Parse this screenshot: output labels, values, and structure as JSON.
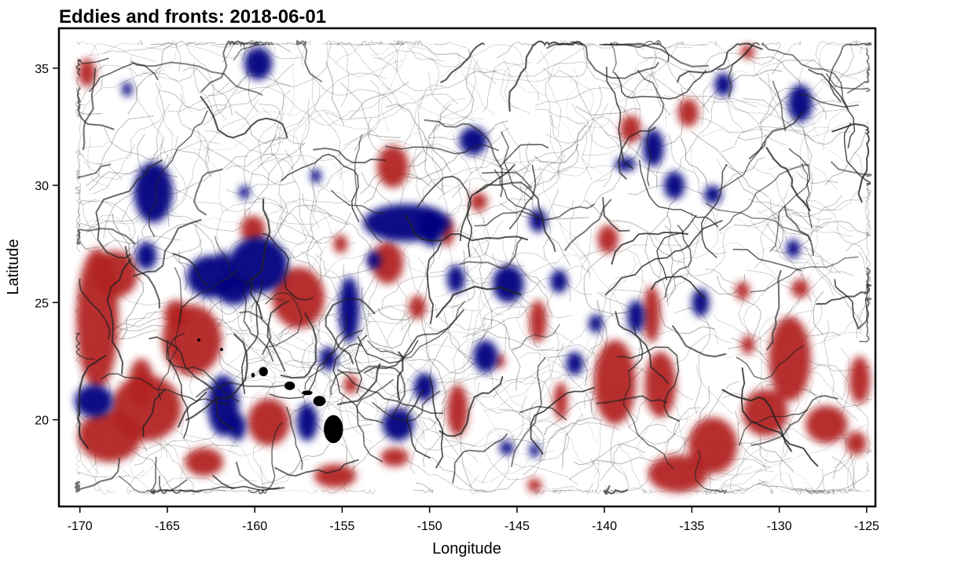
{
  "title": "Eddies and fronts: 2018-06-01",
  "xlabel": "Longitude",
  "ylabel": "Latitude",
  "x_ticks": [
    "-170",
    "-165",
    "-160",
    "-155",
    "-150",
    "-145",
    "-140",
    "-135",
    "-130",
    "-125"
  ],
  "y_ticks": [
    "20",
    "25",
    "30",
    "35"
  ],
  "colors": {
    "cyclonic": "#00007f",
    "anticyclonic": "#b22222",
    "fronts": "#222222",
    "land": "#000000",
    "frame": "#000000"
  },
  "chart_data": {
    "type": "map",
    "title": "Eddies and fronts: 2018-06-01",
    "xlabel": "Longitude",
    "ylabel": "Latitude",
    "xlim": [
      -171.2,
      -124.5
    ],
    "ylim": [
      16.3,
      36.7
    ],
    "data_extent": {
      "lon": [
        -170,
        -125
      ],
      "lat": [
        17,
        36
      ]
    },
    "x_ticks": [
      -170,
      -165,
      -160,
      -155,
      -150,
      -145,
      -140,
      -135,
      -130,
      -125
    ],
    "y_ticks": [
      20,
      25,
      30,
      35
    ],
    "blue_eddies": [
      [
        -169.2,
        20.8,
        1.1,
        0.7
      ],
      [
        -165.8,
        29.7,
        1.1,
        1.3
      ],
      [
        -166.2,
        27.0,
        0.6,
        0.6
      ],
      [
        -162.5,
        26.1,
        1.4,
        0.9
      ],
      [
        -159.8,
        26.6,
        1.7,
        1.2
      ],
      [
        -161.2,
        25.5,
        1.0,
        0.6
      ],
      [
        -161.8,
        20.6,
        0.9,
        1.3
      ],
      [
        -161.0,
        19.7,
        0.5,
        0.6
      ],
      [
        -157.0,
        19.9,
        0.6,
        0.8
      ],
      [
        -154.6,
        24.7,
        0.6,
        1.4
      ],
      [
        -151.3,
        28.4,
        2.5,
        0.8
      ],
      [
        -149.9,
        28.2,
        0.7,
        0.8
      ],
      [
        -147.5,
        31.9,
        0.8,
        0.6
      ],
      [
        -159.8,
        35.2,
        0.8,
        0.7
      ],
      [
        -148.5,
        26.0,
        0.5,
        0.6
      ],
      [
        -145.5,
        25.8,
        0.9,
        0.8
      ],
      [
        -146.8,
        22.7,
        0.7,
        0.7
      ],
      [
        -155.8,
        22.6,
        0.5,
        0.5
      ],
      [
        -150.3,
        21.4,
        0.6,
        0.6
      ],
      [
        -151.8,
        19.8,
        0.9,
        0.7
      ],
      [
        -142.6,
        25.9,
        0.5,
        0.5
      ],
      [
        -143.8,
        28.5,
        0.5,
        0.5
      ],
      [
        -141.7,
        22.4,
        0.5,
        0.5
      ],
      [
        -140.5,
        24.1,
        0.4,
        0.4
      ],
      [
        -138.2,
        24.4,
        0.5,
        0.7
      ],
      [
        -134.5,
        25.0,
        0.5,
        0.6
      ],
      [
        -137.2,
        31.6,
        0.6,
        0.8
      ],
      [
        -136.0,
        30.0,
        0.6,
        0.6
      ],
      [
        -133.2,
        34.3,
        0.5,
        0.5
      ],
      [
        -128.8,
        33.5,
        0.7,
        0.8
      ],
      [
        -129.2,
        27.3,
        0.4,
        0.4
      ],
      [
        -138.8,
        30.9,
        0.6,
        0.3
      ],
      [
        -153.2,
        26.8,
        0.4,
        0.4
      ],
      [
        -133.8,
        29.6,
        0.5,
        0.4
      ],
      [
        -160.6,
        29.7,
        0.3,
        0.3
      ],
      [
        -156.5,
        30.4,
        0.3,
        0.3
      ],
      [
        -167.3,
        34.1,
        0.3,
        0.3
      ],
      [
        -161.8,
        26.9,
        0.3,
        0.3
      ],
      [
        -145.6,
        18.8,
        0.4,
        0.3
      ],
      [
        -144.0,
        18.7,
        0.3,
        0.3
      ]
    ],
    "red_eddies": [
      [
        -169.0,
        24.3,
        1.2,
        3.0
      ],
      [
        -168.0,
        26.2,
        1.3,
        1.0
      ],
      [
        -163.6,
        23.4,
        1.7,
        1.5
      ],
      [
        -164.5,
        24.5,
        0.7,
        0.6
      ],
      [
        -166.2,
        20.5,
        2.0,
        1.4
      ],
      [
        -168.3,
        19.3,
        1.8,
        1.1
      ],
      [
        -166.5,
        21.6,
        0.7,
        1.0
      ],
      [
        -162.9,
        18.2,
        1.1,
        0.6
      ],
      [
        -159.2,
        19.9,
        1.2,
        1.0
      ],
      [
        -157.5,
        25.2,
        1.5,
        1.3
      ],
      [
        -160.1,
        28.1,
        0.7,
        0.6
      ],
      [
        -152.4,
        26.7,
        0.9,
        0.9
      ],
      [
        -152.1,
        30.8,
        0.9,
        0.9
      ],
      [
        -149.0,
        28.0,
        0.4,
        0.6
      ],
      [
        -155.4,
        17.6,
        1.2,
        0.5
      ],
      [
        -152.0,
        18.4,
        0.8,
        0.4
      ],
      [
        -150.7,
        24.8,
        0.5,
        0.5
      ],
      [
        -148.4,
        20.4,
        0.6,
        1.1
      ],
      [
        -147.2,
        29.3,
        0.5,
        0.4
      ],
      [
        -139.8,
        27.7,
        0.6,
        0.6
      ],
      [
        -138.5,
        32.4,
        0.6,
        0.6
      ],
      [
        -135.2,
        33.1,
        0.6,
        0.6
      ],
      [
        -139.4,
        21.6,
        1.2,
        1.8
      ],
      [
        -136.8,
        21.5,
        0.9,
        1.4
      ],
      [
        -133.8,
        18.9,
        1.4,
        1.2
      ],
      [
        -135.8,
        17.7,
        1.7,
        0.8
      ],
      [
        -129.4,
        22.6,
        1.2,
        1.8
      ],
      [
        -130.8,
        20.3,
        1.3,
        1.0
      ],
      [
        -127.3,
        19.8,
        1.2,
        0.8
      ],
      [
        -125.6,
        19.0,
        0.6,
        0.5
      ],
      [
        -125.4,
        21.7,
        0.6,
        1.0
      ],
      [
        -143.8,
        24.2,
        0.5,
        0.9
      ],
      [
        -142.5,
        20.8,
        0.4,
        0.8
      ],
      [
        -137.3,
        24.5,
        0.5,
        1.2
      ],
      [
        -132.1,
        25.5,
        0.4,
        0.4
      ],
      [
        -131.8,
        23.2,
        0.4,
        0.4
      ],
      [
        -128.8,
        25.6,
        0.5,
        0.4
      ],
      [
        -169.6,
        34.8,
        0.5,
        0.6
      ],
      [
        -131.8,
        35.7,
        0.4,
        0.3
      ],
      [
        -144.0,
        17.2,
        0.4,
        0.3
      ],
      [
        -154.5,
        21.5,
        0.4,
        0.4
      ],
      [
        -146.0,
        22.5,
        0.3,
        0.3
      ],
      [
        -155.1,
        27.5,
        0.4,
        0.4
      ]
    ],
    "land": [
      [
        -155.5,
        19.6,
        0.55,
        0.6
      ],
      [
        -156.3,
        20.8,
        0.35,
        0.22
      ],
      [
        -157.0,
        21.15,
        0.3,
        0.1
      ],
      [
        -158.0,
        21.45,
        0.3,
        0.18
      ],
      [
        -159.5,
        22.05,
        0.25,
        0.2
      ],
      [
        -160.1,
        21.9,
        0.1,
        0.1
      ],
      [
        -161.9,
        23.0,
        0.08,
        0.06
      ],
      [
        -163.2,
        23.4,
        0.06,
        0.05
      ]
    ]
  }
}
